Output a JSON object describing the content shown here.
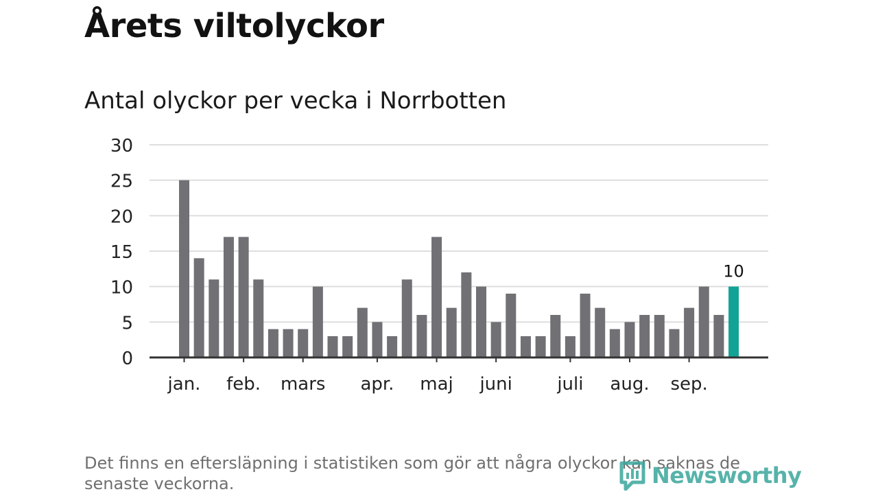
{
  "header": {
    "title": "Årets viltolyckor",
    "subtitle": "Antal olyckor per vecka i Norrbotten"
  },
  "chart_data": {
    "type": "bar",
    "title": "Årets viltolyckor",
    "subtitle": "Antal olyckor per vecka i Norrbotten",
    "xlabel": "",
    "ylabel": "",
    "ylim": [
      0,
      30
    ],
    "yticks": [
      0,
      5,
      10,
      15,
      20,
      25,
      30
    ],
    "grid": true,
    "values": [
      25,
      14,
      11,
      17,
      17,
      11,
      4,
      4,
      4,
      10,
      3,
      3,
      7,
      5,
      3,
      11,
      6,
      17,
      7,
      12,
      10,
      5,
      9,
      3,
      3,
      6,
      3,
      9,
      7,
      4,
      5,
      6,
      6,
      4,
      7,
      10,
      6,
      10
    ],
    "month_labels": [
      {
        "label": "jan.",
        "bar_index": 0
      },
      {
        "label": "feb.",
        "bar_index": 4
      },
      {
        "label": "mars",
        "bar_index": 8
      },
      {
        "label": "apr.",
        "bar_index": 13
      },
      {
        "label": "maj",
        "bar_index": 17
      },
      {
        "label": "juni",
        "bar_index": 21
      },
      {
        "label": "juli",
        "bar_index": 26
      },
      {
        "label": "aug.",
        "bar_index": 30
      },
      {
        "label": "sep.",
        "bar_index": 34
      }
    ],
    "highlight_index": 37,
    "highlight_label": "10",
    "colors": {
      "bar": "#707075",
      "highlight": "#13a396",
      "grid": "#dedede",
      "axis": "#333333"
    }
  },
  "footer": {
    "note": "Det finns en eftersläpning i statistiken som gör att några olyckor kan saknas de senaste veckorna.",
    "brand": "Newsworthy"
  }
}
